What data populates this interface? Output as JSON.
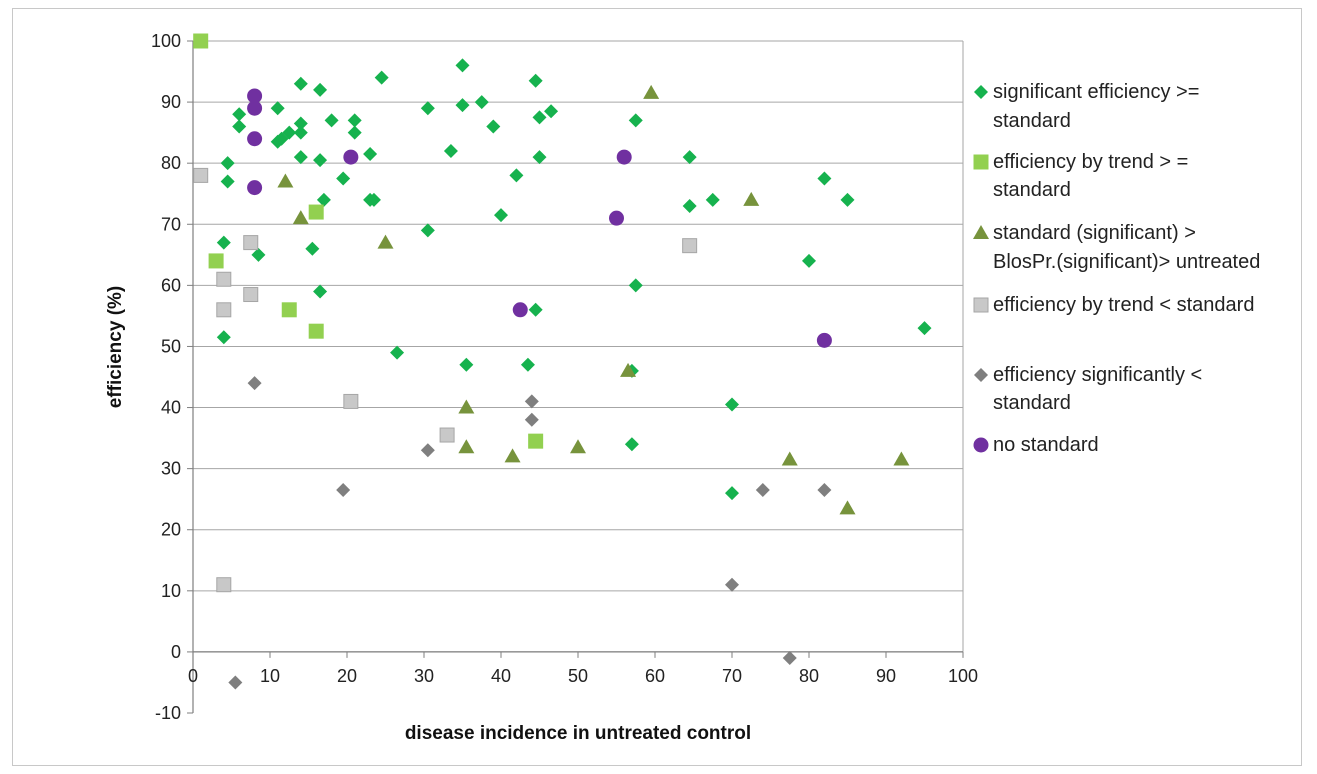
{
  "chart_data": {
    "type": "scatter",
    "xlabel": "disease incidence in untreated control",
    "ylabel": "efficiency  (%)",
    "xlim": [
      0,
      100
    ],
    "ylim": [
      -10,
      100
    ],
    "xticks": [
      0,
      10,
      20,
      30,
      40,
      50,
      60,
      70,
      80,
      90,
      100
    ],
    "yticks": [
      -10,
      0,
      10,
      20,
      30,
      40,
      50,
      60,
      70,
      80,
      90,
      100
    ],
    "grid": "horizontal",
    "legend_position": "right",
    "series": [
      {
        "name": "significant efficiency >= standard",
        "label_lines": [
          "significant efficiency >=",
          "standard"
        ],
        "marker": "diamond",
        "color": "#16b24e",
        "points": [
          [
            4,
            51.5
          ],
          [
            4,
            67
          ],
          [
            4.5,
            77
          ],
          [
            4.5,
            80
          ],
          [
            6,
            86
          ],
          [
            6,
            88
          ],
          [
            8.5,
            65
          ],
          [
            11,
            83.5
          ],
          [
            11,
            89
          ],
          [
            11.5,
            84
          ],
          [
            12.5,
            85
          ],
          [
            14,
            81
          ],
          [
            14,
            85
          ],
          [
            14,
            86.5
          ],
          [
            14,
            93
          ],
          [
            15.5,
            66
          ],
          [
            16.5,
            59
          ],
          [
            16.5,
            80.5
          ],
          [
            16.5,
            92
          ],
          [
            17,
            74
          ],
          [
            18,
            87
          ],
          [
            19.5,
            77.5
          ],
          [
            21,
            85
          ],
          [
            21,
            87
          ],
          [
            23,
            74
          ],
          [
            23,
            81.5
          ],
          [
            23.5,
            74
          ],
          [
            24.5,
            94
          ],
          [
            26.5,
            49
          ],
          [
            30.5,
            69
          ],
          [
            30.5,
            89
          ],
          [
            33.5,
            82
          ],
          [
            35,
            89.5
          ],
          [
            35,
            96
          ],
          [
            35.5,
            47
          ],
          [
            37.5,
            90
          ],
          [
            39,
            86
          ],
          [
            40,
            71.5
          ],
          [
            42,
            78
          ],
          [
            43.5,
            47
          ],
          [
            44.5,
            56
          ],
          [
            44.5,
            93.5
          ],
          [
            45,
            81
          ],
          [
            45,
            87.5
          ],
          [
            46.5,
            88.5
          ],
          [
            57,
            34
          ],
          [
            57,
            46
          ],
          [
            57.5,
            60
          ],
          [
            57.5,
            87
          ],
          [
            64.5,
            73
          ],
          [
            64.5,
            81
          ],
          [
            67.5,
            74
          ],
          [
            70,
            26
          ],
          [
            70,
            40.5
          ],
          [
            80,
            64
          ],
          [
            82,
            77.5
          ],
          [
            85,
            74
          ],
          [
            95,
            53
          ]
        ]
      },
      {
        "name": "efficiency by trend > = standard",
        "label_lines": [
          "efficiency by trend > =",
          "standard"
        ],
        "marker": "square",
        "color": "#92d050",
        "points": [
          [
            1,
            100
          ],
          [
            3,
            64
          ],
          [
            12.5,
            56
          ],
          [
            16,
            52.5
          ],
          [
            16,
            72
          ],
          [
            44.5,
            34.5
          ]
        ]
      },
      {
        "name": "standard (significant) > BlosPr.(significant)> untreated",
        "label_lines": [
          "standard (significant) >",
          "BlosPr.(significant)> untreated"
        ],
        "marker": "triangle",
        "color": "#77933c",
        "points": [
          [
            12,
            77
          ],
          [
            14,
            71
          ],
          [
            25,
            67
          ],
          [
            35.5,
            33.5
          ],
          [
            35.5,
            40
          ],
          [
            41.5,
            32
          ],
          [
            50,
            33.5
          ],
          [
            56.5,
            46
          ],
          [
            59.5,
            91.5
          ],
          [
            72.5,
            74
          ],
          [
            77.5,
            31.5
          ],
          [
            85,
            23.5
          ],
          [
            92,
            31.5
          ]
        ]
      },
      {
        "name": "efficiency by trend < standard",
        "label_lines": [
          "efficiency by trend < standard"
        ],
        "marker": "square",
        "color": "#c8c8c8",
        "points": [
          [
            1,
            78
          ],
          [
            4,
            11
          ],
          [
            4,
            56
          ],
          [
            4,
            61
          ],
          [
            7.5,
            58.5
          ],
          [
            7.5,
            67
          ],
          [
            20.5,
            41
          ],
          [
            33,
            35.5
          ],
          [
            64.5,
            66.5
          ]
        ]
      },
      {
        "name": "efficiency significantly < standard",
        "label_lines": [
          "efficiency significantly <",
          "standard"
        ],
        "marker": "diamond",
        "color": "#7f7f7f",
        "points": [
          [
            5.5,
            -5
          ],
          [
            8,
            44
          ],
          [
            19.5,
            26.5
          ],
          [
            30.5,
            33
          ],
          [
            44,
            38
          ],
          [
            44,
            41
          ],
          [
            70,
            11
          ],
          [
            74,
            26.5
          ],
          [
            77.5,
            -1
          ],
          [
            82,
            26.5
          ]
        ]
      },
      {
        "name": "no standard",
        "label_lines": [
          "no standard"
        ],
        "marker": "circle",
        "color": "#7030a0",
        "points": [
          [
            8,
            76
          ],
          [
            8,
            84
          ],
          [
            8,
            89
          ],
          [
            8,
            91
          ],
          [
            20.5,
            81
          ],
          [
            42.5,
            56
          ],
          [
            55,
            71
          ],
          [
            56,
            81
          ],
          [
            82,
            51
          ]
        ]
      }
    ]
  }
}
